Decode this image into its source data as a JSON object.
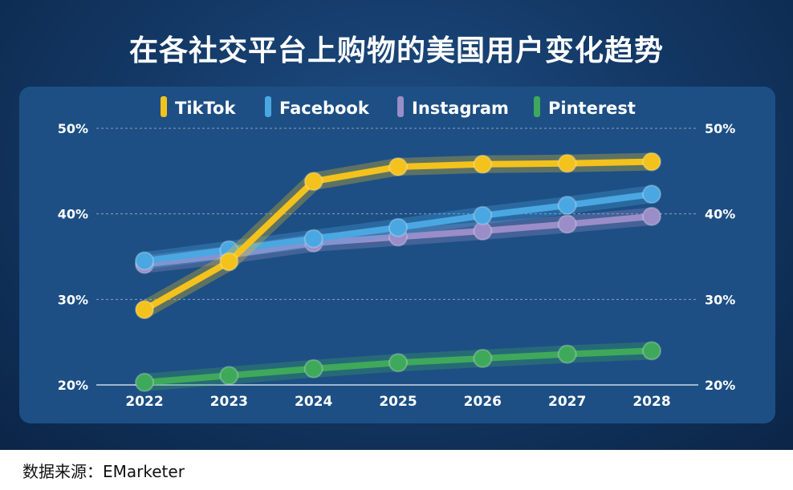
{
  "title": "在各社交平台上购物的美国用户变化趋势",
  "source": "数据来源：EMarketer",
  "colors": {
    "tiktok": "#f4c21c",
    "facebook": "#4aa7e2",
    "instagram": "#9b8dc8",
    "pinterest": "#3ea95a",
    "axis_text": "#ffffff",
    "grid": "#7fa3c8"
  },
  "chart_data": {
    "type": "line",
    "title": "在各社交平台上购物的美国用户变化趋势",
    "x": [
      "2022",
      "2023",
      "2024",
      "2025",
      "2026",
      "2027",
      "2028"
    ],
    "ylim": [
      20,
      50
    ],
    "yticks": [
      "20%",
      "30%",
      "40%",
      "50%"
    ],
    "ytick_values": [
      20,
      30,
      40,
      50
    ],
    "grid": true,
    "legend_position": "top",
    "series": [
      {
        "name": "TikTok",
        "color_key": "tiktok",
        "values": [
          28.8,
          34.4,
          43.8,
          45.5,
          45.8,
          45.9,
          46.1
        ]
      },
      {
        "name": "Facebook",
        "color_key": "facebook",
        "values": [
          34.5,
          35.8,
          37.1,
          38.4,
          39.8,
          41.0,
          42.3
        ]
      },
      {
        "name": "Instagram",
        "color_key": "instagram",
        "values": [
          34.1,
          35.2,
          36.6,
          37.3,
          38.0,
          38.8,
          39.7
        ]
      },
      {
        "name": "Pinterest",
        "color_key": "pinterest",
        "values": [
          20.3,
          21.1,
          21.9,
          22.6,
          23.1,
          23.6,
          24.0
        ]
      }
    ]
  }
}
